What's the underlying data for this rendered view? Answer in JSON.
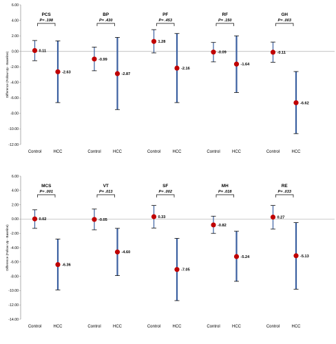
{
  "chart_data": [
    {
      "type": "scatter",
      "subtype": "error-bar",
      "ylabel": "Difference (Follow Up - Baseline)",
      "ylim": [
        -12,
        6
      ],
      "yticks": [
        "6.00",
        "4.00",
        "2.00",
        "0.00",
        "-2.00",
        "-4.00",
        "-6.00",
        "-8.00",
        "-10.00",
        "-12.00"
      ],
      "grid": false,
      "colors": {
        "marker": "#c00000",
        "errorbar": "#3a5fa0"
      },
      "panels": [
        {
          "title": "PCS",
          "p": "P= .198",
          "groups": [
            {
              "label": "Control",
              "mean": 0.11,
              "value_label": "0.11",
              "lower": -1.2,
              "upper": 1.4
            },
            {
              "label": "HCC",
              "mean": -2.63,
              "value_label": "-2.63",
              "lower": -6.6,
              "upper": 1.35
            }
          ]
        },
        {
          "title": "BP",
          "p": "P= .430",
          "groups": [
            {
              "label": "Control",
              "mean": -0.99,
              "value_label": "-0.99",
              "lower": -2.5,
              "upper": 0.55
            },
            {
              "label": "HCC",
              "mean": -2.87,
              "value_label": "-2.87",
              "lower": -7.5,
              "upper": 1.8
            }
          ]
        },
        {
          "title": "PF",
          "p": "P= .453",
          "groups": [
            {
              "label": "Control",
              "mean": 1.28,
              "value_label": "1.28",
              "lower": -0.2,
              "upper": 2.8
            },
            {
              "label": "HCC",
              "mean": -2.16,
              "value_label": "-2.16",
              "lower": -6.6,
              "upper": 2.3
            }
          ]
        },
        {
          "title": "RF",
          "p": "P= .150",
          "groups": [
            {
              "label": "Control",
              "mean": -0.09,
              "value_label": "-0.09",
              "lower": -1.35,
              "upper": 1.15
            },
            {
              "label": "HCC",
              "mean": -1.64,
              "value_label": "-1.64",
              "lower": -5.3,
              "upper": 2.0
            }
          ]
        },
        {
          "title": "GH",
          "p": "P= .003",
          "groups": [
            {
              "label": "Control",
              "mean": -0.11,
              "value_label": "-0.11",
              "lower": -1.4,
              "upper": 1.2
            },
            {
              "label": "HCC",
              "mean": -6.62,
              "value_label": "-6.62",
              "lower": -10.6,
              "upper": -2.6
            }
          ]
        }
      ]
    },
    {
      "type": "scatter",
      "subtype": "error-bar",
      "ylabel": "Difference (Follow Up - Baseline)",
      "ylim": [
        -14,
        6
      ],
      "yticks": [
        "6.00",
        "4.00",
        "2.00",
        "0.00",
        "-2.00",
        "-4.00",
        "-6.00",
        "-8.00",
        "-10.00",
        "-12.00",
        "-14.00"
      ],
      "grid": false,
      "colors": {
        "marker": "#c00000",
        "errorbar": "#3a5fa0"
      },
      "panels": [
        {
          "title": "MCS",
          "p": "P= .001",
          "groups": [
            {
              "label": "Control",
              "mean": 0.02,
              "value_label": "0.02",
              "lower": -1.3,
              "upper": 1.3
            },
            {
              "label": "HCC",
              "mean": -6.36,
              "value_label": "-6.36",
              "lower": -9.9,
              "upper": -2.8
            }
          ]
        },
        {
          "title": "VT",
          "p": "P= .013",
          "groups": [
            {
              "label": "Control",
              "mean": -0.05,
              "value_label": "-0.05",
              "lower": -1.5,
              "upper": 1.4
            },
            {
              "label": "HCC",
              "mean": -4.6,
              "value_label": "-4.60",
              "lower": -7.9,
              "upper": -1.3
            }
          ]
        },
        {
          "title": "SF",
          "p": "P= .002",
          "groups": [
            {
              "label": "Control",
              "mean": 0.33,
              "value_label": "0.33",
              "lower": -1.25,
              "upper": 1.9
            },
            {
              "label": "HCC",
              "mean": -7.05,
              "value_label": "-7.05",
              "lower": -11.4,
              "upper": -2.7
            }
          ]
        },
        {
          "title": "MH",
          "p": "P= .018",
          "groups": [
            {
              "label": "Control",
              "mean": -0.82,
              "value_label": "-0.82",
              "lower": -2.0,
              "upper": 0.4
            },
            {
              "label": "HCC",
              "mean": -5.24,
              "value_label": "-5.24",
              "lower": -8.7,
              "upper": -1.7
            }
          ]
        },
        {
          "title": "RE",
          "p": "P= .033",
          "groups": [
            {
              "label": "Control",
              "mean": 0.27,
              "value_label": "0.27",
              "lower": -1.4,
              "upper": 1.9
            },
            {
              "label": "HCC",
              "mean": -5.13,
              "value_label": "-5.13",
              "lower": -9.8,
              "upper": -0.5
            }
          ]
        }
      ]
    }
  ]
}
